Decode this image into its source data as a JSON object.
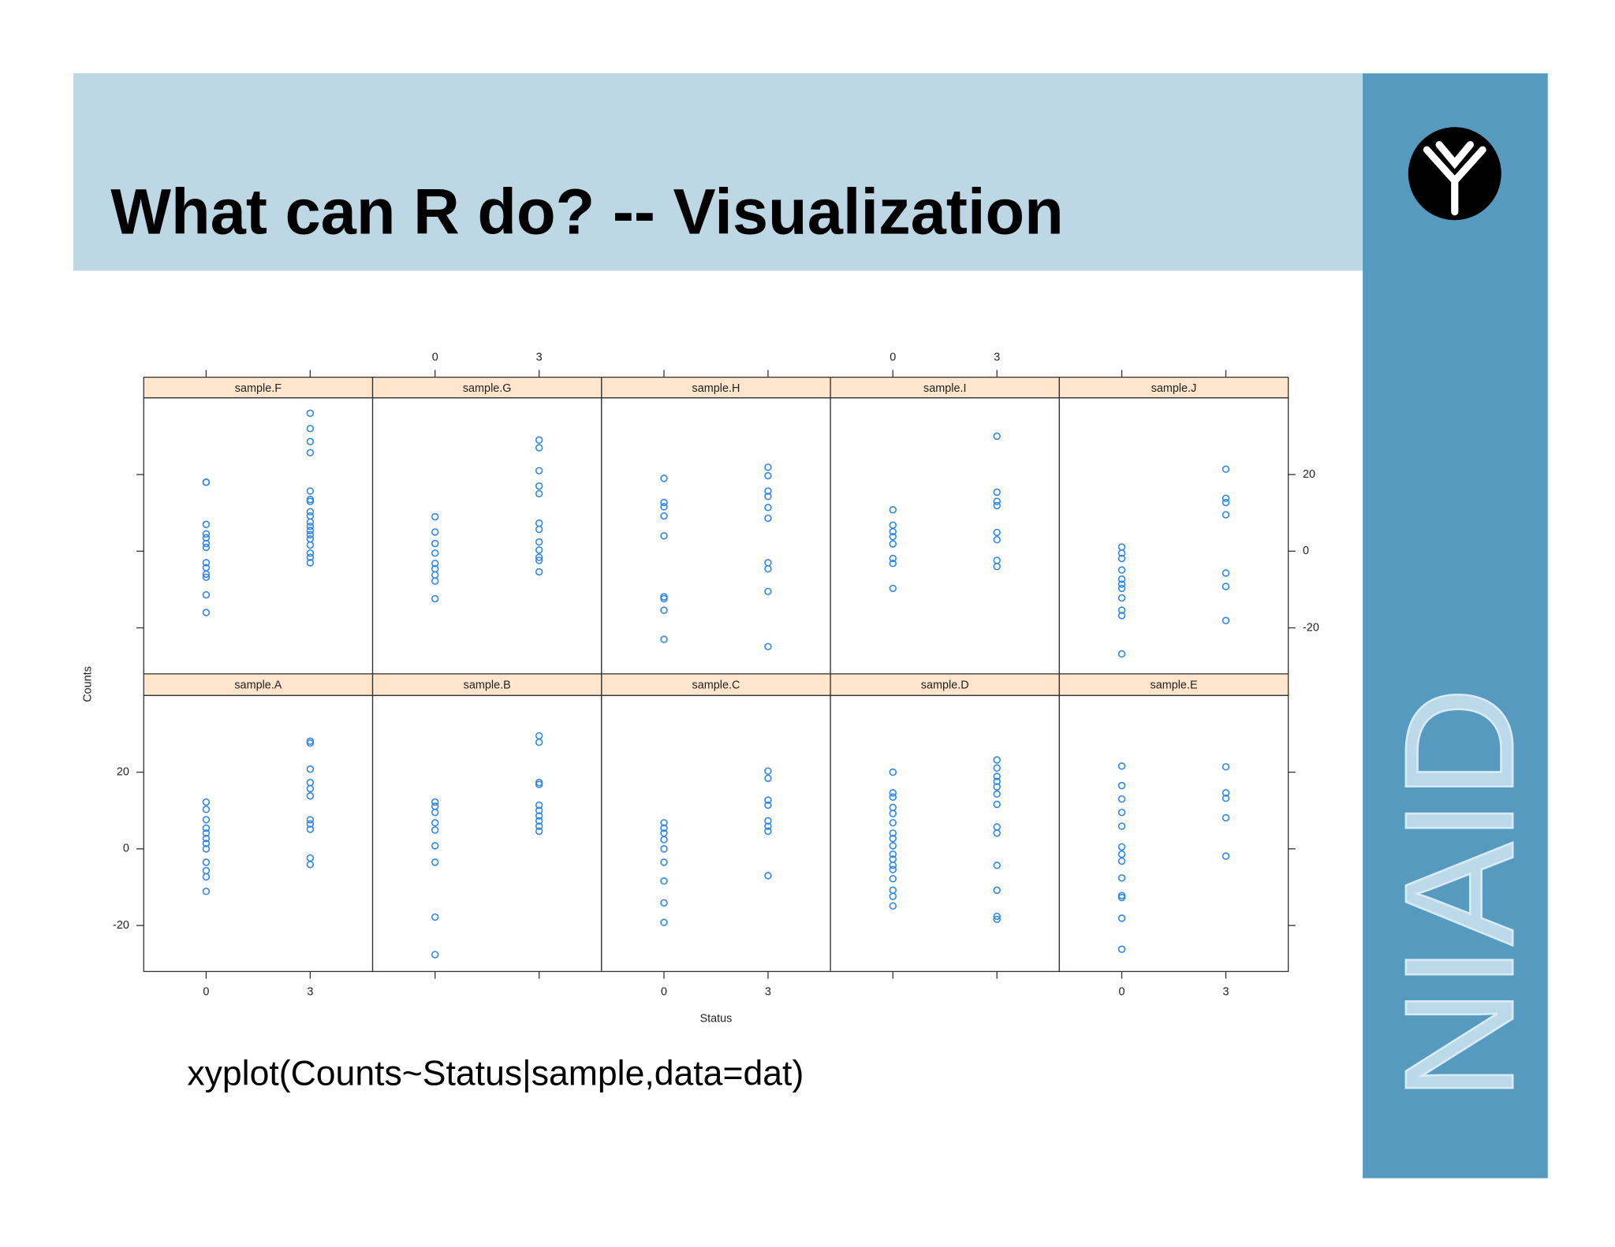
{
  "title": "What can R do? -- Visualization",
  "code": "xyplot(Counts~Status|sample,data=dat)",
  "logo_text": "NIAID",
  "chart_data": {
    "type": "scatter",
    "x_label": "Status",
    "y_label": "Counts",
    "color": "#2b86ee",
    "xlim": [
      -1.8,
      4.8
    ],
    "ylim": [
      -32,
      40
    ],
    "xticks": [
      0,
      3
    ],
    "yticks": [
      -20,
      0,
      20
    ],
    "panels": [
      {
        "name": "sample.A",
        "x": [
          0,
          0,
          0,
          0,
          0,
          0,
          0,
          0,
          0,
          0,
          0,
          0,
          3,
          3,
          3,
          3,
          3,
          3,
          3,
          3,
          3,
          3,
          3
        ],
        "y": [
          12.2,
          10.3,
          7.6,
          5.4,
          4.1,
          2.7,
          1.4,
          0,
          -3.5,
          -5.7,
          -7.3,
          -11.1,
          28.1,
          27.6,
          20.8,
          17.3,
          15.7,
          13.8,
          7.6,
          6.5,
          5.1,
          -2.4,
          -4.1
        ]
      },
      {
        "name": "sample.B",
        "x": [
          0,
          0,
          0,
          0,
          0,
          0,
          0,
          0,
          0,
          3,
          3,
          3,
          3,
          3,
          3,
          3,
          3,
          3,
          3
        ],
        "y": [
          12.2,
          11.1,
          9.5,
          6.8,
          4.9,
          0.8,
          -3.5,
          -17.8,
          -27.6,
          29.5,
          27.8,
          17.3,
          16.8,
          11.4,
          10,
          8.6,
          7.3,
          5.9,
          4.6
        ]
      },
      {
        "name": "sample.C",
        "x": [
          0,
          0,
          0,
          0,
          0,
          0,
          0,
          0,
          0,
          3,
          3,
          3,
          3,
          3,
          3,
          3,
          3
        ],
        "y": [
          6.8,
          5.4,
          4.1,
          2.4,
          0,
          -3.5,
          -8.4,
          -14.1,
          -19.2,
          20.3,
          18.4,
          12.7,
          11.4,
          7.3,
          5.9,
          4.6,
          -7
        ]
      },
      {
        "name": "sample.D",
        "x": [
          0,
          0,
          0,
          0,
          0,
          0,
          0,
          0,
          0,
          0,
          0,
          0,
          0,
          0,
          0,
          0,
          0,
          3,
          3,
          3,
          3,
          3,
          3,
          3,
          3,
          3,
          3,
          3,
          3,
          3
        ],
        "y": [
          20,
          14.6,
          13.5,
          10.8,
          9.2,
          6.8,
          4.1,
          2.7,
          0.8,
          -1.4,
          -2.7,
          -4.3,
          -5.4,
          -7.8,
          -10.8,
          -12.4,
          -14.9,
          23.2,
          21.1,
          18.9,
          17.6,
          16.2,
          14.3,
          11.6,
          5.7,
          4.1,
          -4.3,
          -10.8,
          -17.6,
          -18.4
        ]
      },
      {
        "name": "sample.E",
        "x": [
          0,
          0,
          0,
          0,
          0,
          0,
          0,
          0,
          0,
          0,
          0,
          0,
          0,
          3,
          3,
          3,
          3,
          3
        ],
        "y": [
          21.6,
          16.5,
          13,
          9.5,
          5.9,
          0.5,
          -1.4,
          -3.2,
          -7.6,
          -12.2,
          -12.7,
          -18.1,
          -26.2,
          21.4,
          14.6,
          13.2,
          8.1,
          -1.9
        ]
      },
      {
        "name": "sample.F",
        "x": [
          0,
          0,
          0,
          0,
          0,
          0,
          0,
          0,
          0,
          0,
          0,
          0,
          0,
          3,
          3,
          3,
          3,
          3,
          3,
          3,
          3,
          3,
          3,
          3,
          3,
          3,
          3,
          3,
          3,
          3,
          3
        ],
        "y": [
          18,
          18,
          7,
          4.5,
          3.5,
          2,
          1,
          -3,
          -4.3,
          -6,
          -6.8,
          -11.4,
          -16,
          36,
          32,
          28.6,
          25.7,
          15.7,
          13.5,
          13,
          10.3,
          9.2,
          7.6,
          6.5,
          5.4,
          4.3,
          3.2,
          1.6,
          -0.5,
          -1.6,
          -3
        ]
      },
      {
        "name": "sample.G",
        "x": [
          0,
          0,
          0,
          0,
          0,
          0,
          0,
          0,
          0,
          3,
          3,
          3,
          3,
          3,
          3,
          3,
          3,
          3,
          3,
          3,
          3
        ],
        "y": [
          9,
          5,
          2,
          -0.5,
          -3.2,
          -4.6,
          -6.2,
          -7.8,
          -12.4,
          29,
          27,
          21,
          17,
          15,
          7.3,
          5.7,
          2.4,
          0.3,
          -1.6,
          -2.4,
          -5.4
        ]
      },
      {
        "name": "sample.H",
        "x": [
          0,
          0,
          0,
          0,
          0,
          0,
          0,
          0,
          0,
          3,
          3,
          3,
          3,
          3,
          3,
          3,
          3,
          3,
          3
        ],
        "y": [
          19,
          12.7,
          11.6,
          9.2,
          4,
          -11.9,
          -12.4,
          -15.4,
          -23,
          21.9,
          19.7,
          15.7,
          14.3,
          11.4,
          8.6,
          -3,
          -4.6,
          -10.5,
          -24.9
        ]
      },
      {
        "name": "sample.I",
        "x": [
          0,
          0,
          0,
          0,
          0,
          0,
          0,
          0,
          3,
          3,
          3,
          3,
          3,
          3,
          3,
          3
        ],
        "y": [
          10.8,
          6.8,
          5.1,
          3.8,
          1.9,
          -1.9,
          -3.2,
          -9.7,
          30,
          15.4,
          13,
          11.9,
          4.9,
          3,
          -2.4,
          -4
        ]
      },
      {
        "name": "sample.J",
        "x": [
          0,
          0,
          0,
          0,
          0,
          0,
          0,
          0,
          0,
          0,
          0,
          3,
          3,
          3,
          3,
          3,
          3,
          3
        ],
        "y": [
          1.1,
          -0.5,
          -1.9,
          -4.9,
          -7.3,
          -8.6,
          -9.7,
          -12.2,
          -15.4,
          -16.8,
          -26.8,
          21.4,
          13.8,
          12.7,
          9.5,
          -5.7,
          -9.2,
          -18.1
        ]
      }
    ]
  }
}
